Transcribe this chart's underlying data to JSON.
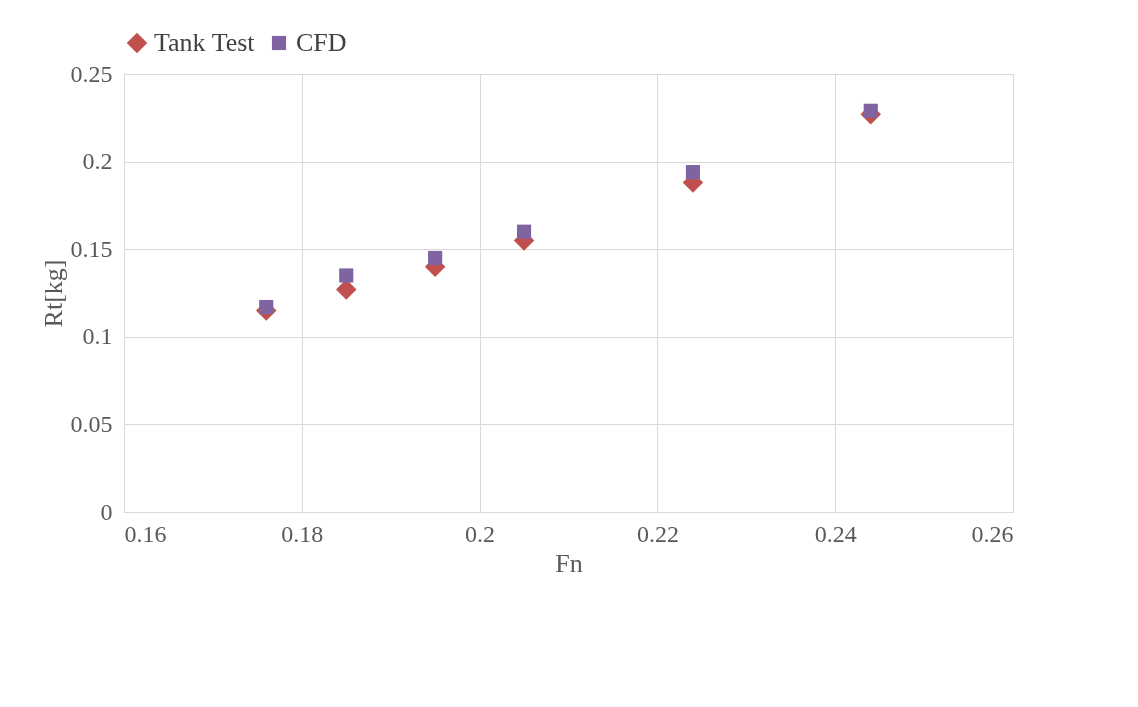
{
  "chart_data": {
    "type": "scatter",
    "xlabel": "Fn",
    "ylabel": "Rt[kg]",
    "x": [
      0.176,
      0.185,
      0.195,
      0.205,
      0.224,
      0.244
    ],
    "series": [
      {
        "name": "Tank Test",
        "color": "#c0504d",
        "marker": "diamond",
        "values": [
          0.115,
          0.127,
          0.14,
          0.155,
          0.188,
          0.227
        ]
      },
      {
        "name": "CFD",
        "color": "#8064a2",
        "marker": "square",
        "values": [
          0.117,
          0.135,
          0.145,
          0.16,
          0.194,
          0.229
        ]
      }
    ],
    "xlim": [
      0.16,
      0.26
    ],
    "xticks": [
      0.16,
      0.18,
      0.2,
      0.22,
      0.24,
      0.26
    ],
    "ylim": [
      0,
      0.25
    ],
    "yticks": [
      0,
      0.05,
      0.1,
      0.15,
      0.2,
      0.25
    ],
    "grid": true,
    "legend": "top"
  }
}
